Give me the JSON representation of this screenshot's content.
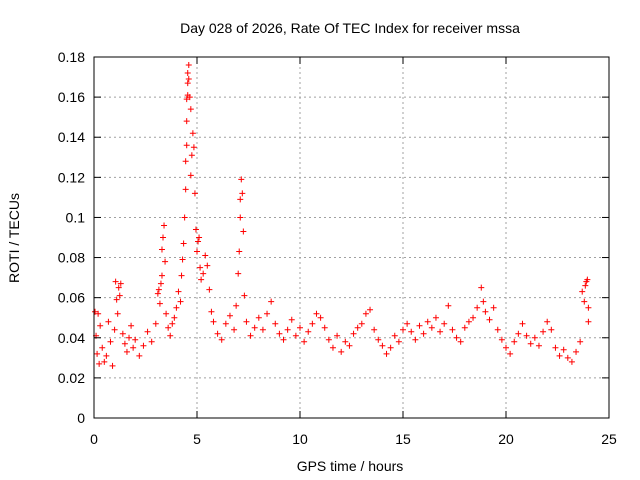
{
  "chart_data": {
    "type": "scatter",
    "title": "Day 028 of 2026, Rate Of TEC Index for receiver mssa",
    "xlabel": "GPS time / hours",
    "ylabel": "ROTI / TECUs",
    "xlim": [
      0,
      25
    ],
    "ylim": [
      0,
      0.18
    ],
    "xticks": [
      0,
      5,
      10,
      15,
      20,
      25
    ],
    "xtick_labels": [
      "0",
      "5",
      "10",
      "15",
      "20",
      "25"
    ],
    "yticks": [
      0,
      0.02,
      0.04,
      0.06,
      0.08,
      0.1,
      0.12,
      0.14,
      0.16,
      0.18
    ],
    "ytick_labels": [
      "0",
      "0.02",
      "0.04",
      "0.06",
      "0.08",
      "0.1",
      "0.12",
      "0.14",
      "0.16",
      "0.18"
    ],
    "grid": true,
    "marker": "+",
    "marker_color": "#ff0000",
    "series": [
      {
        "name": "ROTI",
        "points": [
          [
            0.05,
            0.053
          ],
          [
            0.1,
            0.041
          ],
          [
            0.15,
            0.032
          ],
          [
            0.2,
            0.052
          ],
          [
            0.25,
            0.027
          ],
          [
            0.3,
            0.046
          ],
          [
            0.4,
            0.035
          ],
          [
            0.5,
            0.028
          ],
          [
            0.6,
            0.031
          ],
          [
            0.7,
            0.048
          ],
          [
            0.8,
            0.038
          ],
          [
            0.9,
            0.026
          ],
          [
            1.0,
            0.044
          ],
          [
            1.05,
            0.068
          ],
          [
            1.1,
            0.059
          ],
          [
            1.15,
            0.052
          ],
          [
            1.2,
            0.065
          ],
          [
            1.25,
            0.061
          ],
          [
            1.3,
            0.067
          ],
          [
            1.4,
            0.042
          ],
          [
            1.5,
            0.037
          ],
          [
            1.6,
            0.033
          ],
          [
            1.7,
            0.04
          ],
          [
            1.8,
            0.046
          ],
          [
            1.9,
            0.035
          ],
          [
            2.0,
            0.039
          ],
          [
            2.2,
            0.031
          ],
          [
            2.4,
            0.036
          ],
          [
            2.6,
            0.043
          ],
          [
            2.8,
            0.038
          ],
          [
            3.0,
            0.047
          ],
          [
            3.1,
            0.062
          ],
          [
            3.15,
            0.064
          ],
          [
            3.2,
            0.057
          ],
          [
            3.25,
            0.067
          ],
          [
            3.3,
            0.071
          ],
          [
            3.3,
            0.084
          ],
          [
            3.35,
            0.09
          ],
          [
            3.4,
            0.096
          ],
          [
            3.45,
            0.078
          ],
          [
            3.5,
            0.052
          ],
          [
            3.6,
            0.045
          ],
          [
            3.7,
            0.041
          ],
          [
            3.8,
            0.047
          ],
          [
            3.9,
            0.05
          ],
          [
            4.0,
            0.055
          ],
          [
            4.1,
            0.063
          ],
          [
            4.2,
            0.058
          ],
          [
            4.25,
            0.071
          ],
          [
            4.3,
            0.079
          ],
          [
            4.35,
            0.087
          ],
          [
            4.4,
            0.1
          ],
          [
            4.45,
            0.114
          ],
          [
            4.45,
            0.128
          ],
          [
            4.5,
            0.136
          ],
          [
            4.5,
            0.148
          ],
          [
            4.5,
            0.159
          ],
          [
            4.55,
            0.161
          ],
          [
            4.55,
            0.167
          ],
          [
            4.55,
            0.172
          ],
          [
            4.6,
            0.176
          ],
          [
            4.6,
            0.169
          ],
          [
            4.65,
            0.16
          ],
          [
            4.7,
            0.154
          ],
          [
            4.7,
            0.121
          ],
          [
            4.75,
            0.131
          ],
          [
            4.8,
            0.142
          ],
          [
            4.85,
            0.135
          ],
          [
            4.9,
            0.112
          ],
          [
            4.95,
            0.094
          ],
          [
            5.0,
            0.083
          ],
          [
            5.05,
            0.088
          ],
          [
            5.1,
            0.09
          ],
          [
            5.15,
            0.075
          ],
          [
            5.2,
            0.069
          ],
          [
            5.3,
            0.072
          ],
          [
            5.4,
            0.081
          ],
          [
            5.5,
            0.076
          ],
          [
            5.6,
            0.064
          ],
          [
            5.7,
            0.053
          ],
          [
            5.8,
            0.048
          ],
          [
            6.0,
            0.042
          ],
          [
            6.2,
            0.039
          ],
          [
            6.4,
            0.047
          ],
          [
            6.6,
            0.051
          ],
          [
            6.8,
            0.044
          ],
          [
            6.9,
            0.056
          ],
          [
            7.0,
            0.072
          ],
          [
            7.05,
            0.083
          ],
          [
            7.1,
            0.1
          ],
          [
            7.1,
            0.109
          ],
          [
            7.15,
            0.119
          ],
          [
            7.2,
            0.112
          ],
          [
            7.25,
            0.093
          ],
          [
            7.3,
            0.061
          ],
          [
            7.4,
            0.048
          ],
          [
            7.6,
            0.041
          ],
          [
            7.8,
            0.045
          ],
          [
            8.0,
            0.05
          ],
          [
            8.2,
            0.044
          ],
          [
            8.4,
            0.052
          ],
          [
            8.6,
            0.058
          ],
          [
            8.8,
            0.047
          ],
          [
            9.0,
            0.042
          ],
          [
            9.2,
            0.039
          ],
          [
            9.4,
            0.044
          ],
          [
            9.6,
            0.049
          ],
          [
            9.8,
            0.041
          ],
          [
            10.0,
            0.045
          ],
          [
            10.2,
            0.038
          ],
          [
            10.4,
            0.043
          ],
          [
            10.6,
            0.047
          ],
          [
            10.8,
            0.052
          ],
          [
            11.0,
            0.05
          ],
          [
            11.2,
            0.045
          ],
          [
            11.4,
            0.039
          ],
          [
            11.6,
            0.035
          ],
          [
            11.8,
            0.041
          ],
          [
            12.0,
            0.033
          ],
          [
            12.2,
            0.038
          ],
          [
            12.4,
            0.036
          ],
          [
            12.6,
            0.042
          ],
          [
            12.8,
            0.045
          ],
          [
            13.0,
            0.047
          ],
          [
            13.2,
            0.052
          ],
          [
            13.4,
            0.054
          ],
          [
            13.6,
            0.044
          ],
          [
            13.8,
            0.039
          ],
          [
            14.0,
            0.036
          ],
          [
            14.2,
            0.032
          ],
          [
            14.4,
            0.035
          ],
          [
            14.6,
            0.041
          ],
          [
            14.8,
            0.038
          ],
          [
            15.0,
            0.044
          ],
          [
            15.2,
            0.047
          ],
          [
            15.4,
            0.043
          ],
          [
            15.6,
            0.039
          ],
          [
            15.8,
            0.046
          ],
          [
            16.0,
            0.042
          ],
          [
            16.2,
            0.048
          ],
          [
            16.4,
            0.045
          ],
          [
            16.6,
            0.05
          ],
          [
            16.8,
            0.043
          ],
          [
            17.0,
            0.047
          ],
          [
            17.2,
            0.056
          ],
          [
            17.4,
            0.044
          ],
          [
            17.6,
            0.04
          ],
          [
            17.8,
            0.038
          ],
          [
            18.0,
            0.045
          ],
          [
            18.2,
            0.048
          ],
          [
            18.4,
            0.05
          ],
          [
            18.6,
            0.055
          ],
          [
            18.8,
            0.065
          ],
          [
            18.9,
            0.058
          ],
          [
            19.0,
            0.053
          ],
          [
            19.2,
            0.049
          ],
          [
            19.4,
            0.055
          ],
          [
            19.6,
            0.044
          ],
          [
            19.8,
            0.039
          ],
          [
            20.0,
            0.035
          ],
          [
            20.2,
            0.032
          ],
          [
            20.4,
            0.038
          ],
          [
            20.6,
            0.042
          ],
          [
            20.8,
            0.047
          ],
          [
            21.0,
            0.041
          ],
          [
            21.2,
            0.037
          ],
          [
            21.4,
            0.04
          ],
          [
            21.6,
            0.036
          ],
          [
            21.8,
            0.043
          ],
          [
            22.0,
            0.048
          ],
          [
            22.2,
            0.044
          ],
          [
            22.4,
            0.035
          ],
          [
            22.6,
            0.031
          ],
          [
            22.8,
            0.034
          ],
          [
            23.0,
            0.03
          ],
          [
            23.2,
            0.028
          ],
          [
            23.4,
            0.033
          ],
          [
            23.6,
            0.038
          ],
          [
            23.7,
            0.063
          ],
          [
            23.8,
            0.058
          ],
          [
            23.85,
            0.066
          ],
          [
            23.9,
            0.068
          ],
          [
            23.95,
            0.069
          ],
          [
            24.0,
            0.055
          ],
          [
            24.0,
            0.048
          ]
        ]
      }
    ]
  }
}
